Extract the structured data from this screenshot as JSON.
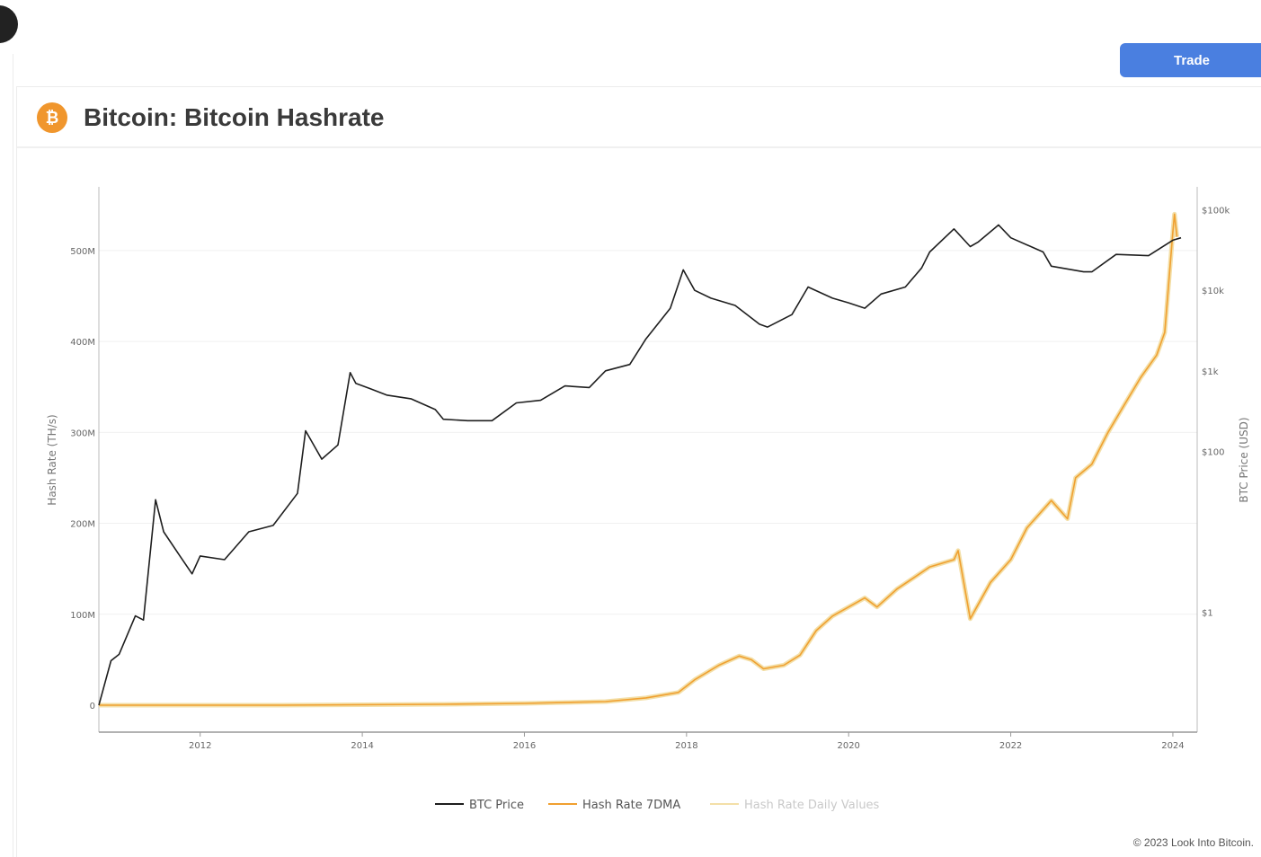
{
  "page": {
    "trade_label": "Trade",
    "title": "Bitcoin: Bitcoin Hashrate",
    "coin_glyph": "₿",
    "copyright": "© 2023 Look Into Bitcoin."
  },
  "colors": {
    "accent": "#4a7fe0",
    "coin": "#f0962d",
    "btc_price": "#1e1e1e",
    "hash_rate_7dma": "#f0a030",
    "hash_rate_daily": "#f3dfa8"
  },
  "chart_data": {
    "type": "line",
    "title": "Bitcoin: Bitcoin Hashrate",
    "xlabel": "",
    "ylabel_left": "Hash Rate (TH/s)",
    "ylabel_right": "BTC Price (USD)",
    "x_ticks": [
      "2012",
      "2014",
      "2016",
      "2018",
      "2020",
      "2022",
      "2024"
    ],
    "xlim": [
      2010.75,
      2024.3
    ],
    "y_left_ticks": [
      "0",
      "100M",
      "200M",
      "300M",
      "400M",
      "500M"
    ],
    "y_left_values": [
      0,
      100,
      200,
      300,
      400,
      500
    ],
    "y_left_unit": "M TH/s",
    "y_left_lim": [
      0,
      570
    ],
    "y_right_ticks": [
      "$1",
      "$100",
      "$1k",
      "$10k",
      "$100k"
    ],
    "y_right_values": [
      1,
      100,
      1000,
      10000,
      100000
    ],
    "y_right_scale": "log",
    "y_right_lim": [
      0.07,
      170000
    ],
    "grid": true,
    "legend_position": "bottom",
    "series": [
      {
        "name": "BTC Price",
        "axis": "right",
        "x": [
          2010.75,
          2010.9,
          2011.0,
          2011.2,
          2011.3,
          2011.45,
          2011.55,
          2011.75,
          2011.9,
          2012.0,
          2012.3,
          2012.6,
          2012.9,
          2013.2,
          2013.3,
          2013.5,
          2013.7,
          2013.85,
          2013.92,
          2014.1,
          2014.3,
          2014.6,
          2014.9,
          2015.0,
          2015.3,
          2015.6,
          2015.9,
          2016.2,
          2016.5,
          2016.8,
          2017.0,
          2017.3,
          2017.5,
          2017.8,
          2017.96,
          2018.1,
          2018.3,
          2018.6,
          2018.9,
          2019.0,
          2019.3,
          2019.5,
          2019.8,
          2020.0,
          2020.2,
          2020.4,
          2020.7,
          2020.9,
          2021.0,
          2021.3,
          2021.5,
          2021.6,
          2021.85,
          2022.0,
          2022.4,
          2022.5,
          2022.9,
          2023.0,
          2023.3,
          2023.7,
          2024.0,
          2024.1
        ],
        "y": [
          0.07,
          0.25,
          0.3,
          0.9,
          0.8,
          25,
          10,
          5,
          3,
          5,
          4.5,
          10,
          12,
          30,
          180,
          80,
          120,
          950,
          700,
          600,
          500,
          450,
          330,
          250,
          240,
          240,
          400,
          430,
          650,
          620,
          1000,
          1200,
          2500,
          6000,
          18000,
          10000,
          8000,
          6500,
          3800,
          3500,
          5000,
          11000,
          8000,
          7000,
          6000,
          9000,
          11000,
          19000,
          30000,
          58000,
          35000,
          40000,
          65000,
          45000,
          30000,
          20000,
          17000,
          17000,
          28000,
          27000,
          42000,
          45000
        ]
      },
      {
        "name": "Hash Rate 7DMA",
        "axis": "left",
        "x": [
          2010.75,
          2013.0,
          2015.0,
          2016.0,
          2017.0,
          2017.5,
          2017.9,
          2018.1,
          2018.4,
          2018.65,
          2018.8,
          2018.95,
          2019.2,
          2019.4,
          2019.6,
          2019.8,
          2020.2,
          2020.35,
          2020.6,
          2020.8,
          2021.0,
          2021.3,
          2021.35,
          2021.5,
          2021.75,
          2022.0,
          2022.2,
          2022.5,
          2022.7,
          2022.8,
          2023.0,
          2023.2,
          2023.4,
          2023.6,
          2023.8,
          2023.9,
          2024.0,
          2024.02,
          2024.05
        ],
        "y": [
          0,
          0,
          1,
          2,
          4,
          8,
          14,
          28,
          44,
          54,
          50,
          40,
          44,
          55,
          82,
          98,
          118,
          108,
          128,
          140,
          152,
          160,
          170,
          95,
          135,
          160,
          195,
          225,
          205,
          250,
          265,
          300,
          330,
          360,
          385,
          410,
          520,
          540,
          515
        ]
      }
    ]
  }
}
